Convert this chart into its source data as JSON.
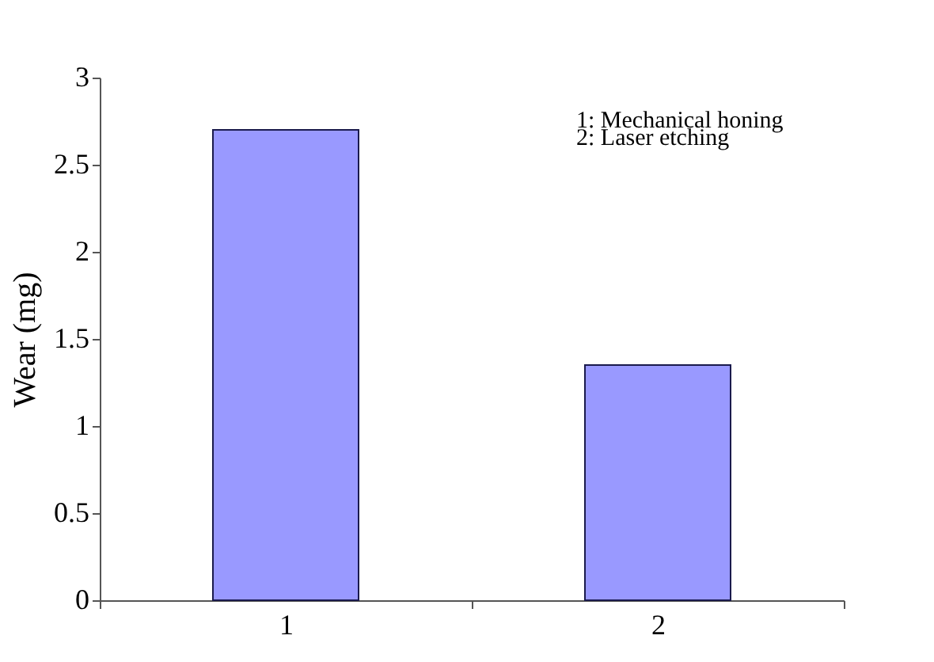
{
  "chart_data": {
    "type": "bar",
    "ylabel": "Wear (mg)",
    "categories": [
      "1",
      "2"
    ],
    "values": [
      2.7,
      1.35
    ],
    "color": "#9999ff",
    "ylim": [
      0,
      3
    ],
    "yticks": [
      0,
      0.5,
      1,
      1.5,
      2,
      2.5,
      3
    ],
    "grid": false,
    "annotations": [
      "1: Mechanical honing",
      "2: Laser etching"
    ]
  }
}
